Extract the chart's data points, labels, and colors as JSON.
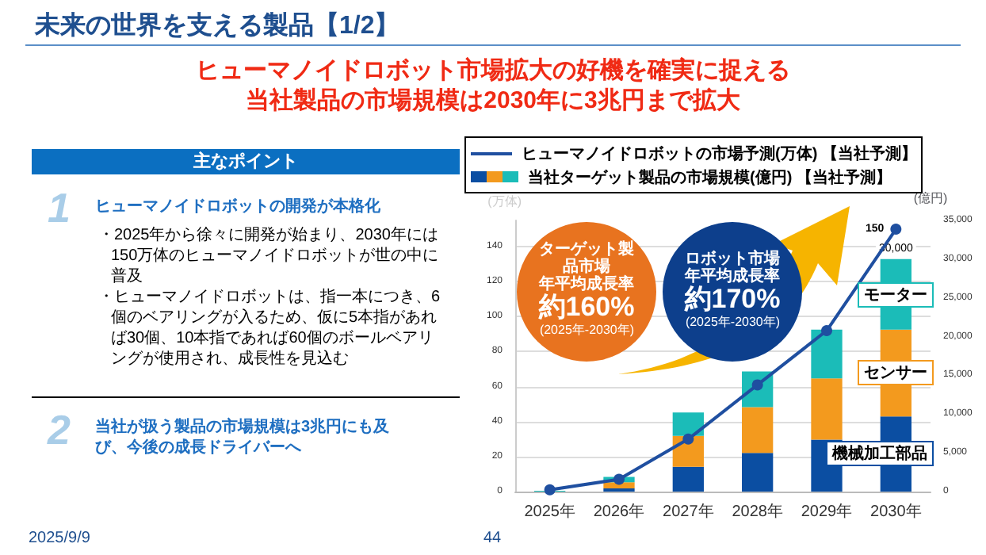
{
  "chart_data": {
    "type": "bar",
    "title": "未来の世界を支える製品【1/2】",
    "subtitle": "ヒューマノイドロボット市場拡大の好機を確実に捉える当社製品の市場規模は2030年に3兆円まで拡大",
    "categories": [
      "2025年",
      "2026年",
      "2027年",
      "2028年",
      "2029年",
      "2030年"
    ],
    "stacked": true,
    "series": [
      {
        "name": "ヒューマノイドロボットの市場予測(万体) 【当社予測】",
        "type": "line",
        "color": "#1f4fa0",
        "values": [
          1,
          7,
          30,
          61,
          92,
          150
        ],
        "value_labels": [
          null,
          null,
          null,
          null,
          null,
          "150"
        ]
      },
      {
        "name": "機械加工部品",
        "axis": "y2",
        "color": "#0b4ea2",
        "values": [
          0,
          400,
          3200,
          5000,
          6700,
          9700
        ]
      },
      {
        "name": "センサー",
        "axis": "y2",
        "color": "#f39a1e",
        "values": [
          0,
          800,
          4000,
          5900,
          7900,
          11200
        ]
      },
      {
        "name": "モーター",
        "axis": "y2",
        "color": "#1bbcb8",
        "values": [
          100,
          700,
          3000,
          4600,
          6300,
          9100
        ]
      }
    ],
    "totals": [
      null,
      null,
      null,
      null,
      null,
      "30,000"
    ],
    "ylabel": "(万体)",
    "y2label": "(億円)",
    "ylim": [
      0,
      155
    ],
    "yticks": [
      0,
      20,
      40,
      60,
      80,
      100,
      120,
      140
    ],
    "y2lim": [
      0,
      35000
    ],
    "y2ticks": [
      0,
      {
        "value": 5000,
        "label": "5,000"
      },
      {
        "value": 10000,
        "label": "10,000"
      },
      {
        "value": 15000,
        "label": "15,000"
      },
      {
        "value": 20000,
        "label": "20,000"
      },
      {
        "value": 25000,
        "label": "25,000"
      },
      {
        "value": 30000,
        "label": "30,000"
      },
      {
        "value": 35000,
        "label": "35,000"
      }
    ],
    "grid": "y",
    "legend": "top left",
    "marker": "circle",
    "annotations": [
      "主なポイント",
      "1",
      "ヒューマノイドロボットの開発が本格化",
      "・2025年から徐々に開発が始まり、2030年には150万体のヒューマノイドロボットが世の中に普及",
      "・ヒューマノイドロボットは、指一本につき、6個のベアリングが入るため、仮に5本指があれば30個、10本指であれば60個のボールベアリングが使用され、成長性を見込む",
      "2",
      "当社が扱う製品の市場規模は3兆円にも及び、今後の成長ドライバーへ",
      "当社ターゲット製品の市場規模(億円) 【当社予測】",
      "ターゲット製品市場",
      "年平均成長率",
      "約160%",
      "(2025年-2030年)",
      "ロボット市場",
      "年平均成長率",
      "約170%",
      "(2025年-2030年)",
      "2025/9/9",
      "44"
    ]
  }
}
